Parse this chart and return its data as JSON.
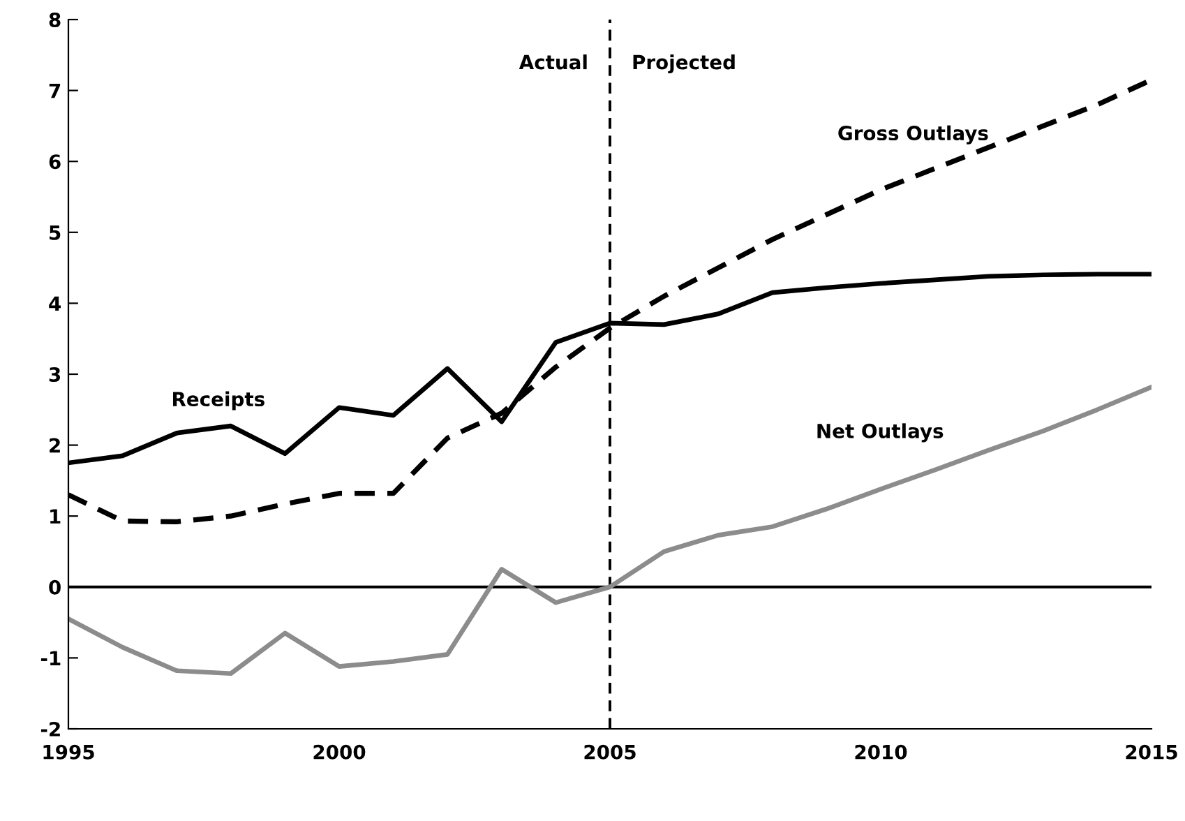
{
  "chart_data": {
    "type": "line",
    "x": [
      1995,
      1996,
      1997,
      1998,
      1999,
      2000,
      2001,
      2002,
      2003,
      2004,
      2005,
      2006,
      2007,
      2008,
      2009,
      2010,
      2011,
      2012,
      2013,
      2014,
      2015
    ],
    "series": [
      {
        "name": "Receipts",
        "color": "#000000",
        "line_style": "solid",
        "values": [
          1.75,
          1.85,
          2.17,
          2.27,
          1.88,
          2.53,
          2.42,
          3.08,
          2.33,
          3.45,
          3.72,
          3.7,
          3.85,
          4.15,
          4.22,
          4.28,
          4.33,
          4.38,
          4.4,
          4.41,
          4.41
        ]
      },
      {
        "name": "Gross Outlays",
        "color": "#000000",
        "line_style": "dashed",
        "values": [
          1.3,
          0.93,
          0.92,
          1.0,
          1.17,
          1.32,
          1.32,
          2.1,
          2.45,
          3.1,
          3.65,
          4.1,
          4.5,
          4.9,
          5.25,
          5.6,
          5.9,
          6.2,
          6.5,
          6.8,
          7.15
        ]
      },
      {
        "name": "Net Outlays",
        "color": "#8c8c8c",
        "line_style": "solid",
        "values": [
          -0.45,
          -0.85,
          -1.18,
          -1.22,
          -0.65,
          -1.12,
          -1.05,
          -0.95,
          0.25,
          -0.22,
          0.0,
          0.5,
          0.73,
          0.85,
          1.1,
          1.38,
          1.65,
          1.93,
          2.2,
          2.5,
          2.82
        ]
      }
    ],
    "xlim": [
      1995,
      2015
    ],
    "xticks": [
      1995,
      2000,
      2005,
      2010,
      2015
    ],
    "ylim": [
      -2,
      8
    ],
    "yticks": [
      -2,
      -1,
      0,
      1,
      2,
      3,
      4,
      5,
      6,
      7,
      8
    ],
    "ref_lines": [
      {
        "axis": "y",
        "value": 0,
        "color": "#000000",
        "line_style": "solid"
      },
      {
        "axis": "x",
        "value": 2005,
        "color": "#000000",
        "line_style": "dashed"
      }
    ],
    "annotations": [
      "Actual",
      "Projected"
    ],
    "grid": false,
    "legend": false,
    "marker": "none"
  }
}
